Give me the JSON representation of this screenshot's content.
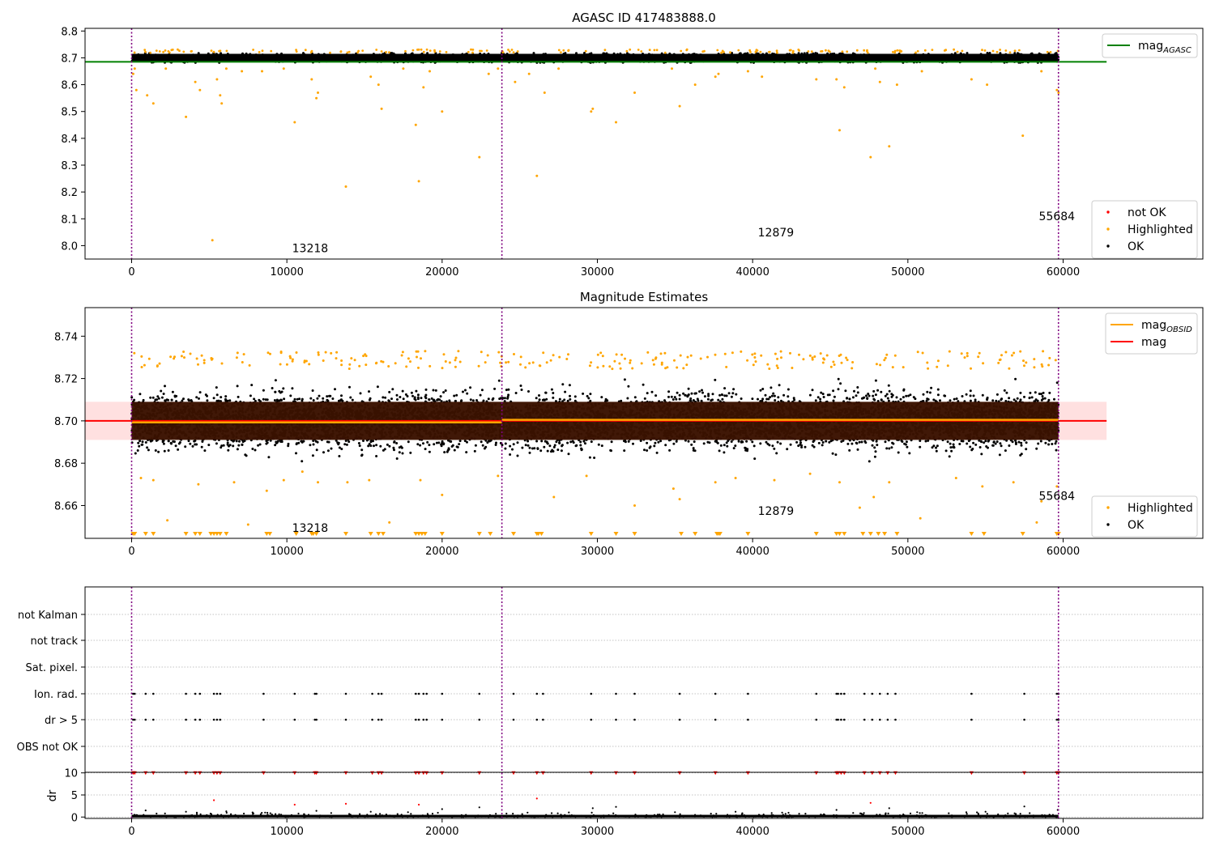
{
  "chart_data": [
    {
      "type": "scatter",
      "title": "AGASC ID 417483888.0",
      "xlim": [
        -3000,
        69000
      ],
      "ylim": [
        7.95,
        8.81
      ],
      "xticks": [
        0,
        10000,
        20000,
        30000,
        40000,
        50000,
        60000
      ],
      "xtick_labels": [
        "0",
        "10000",
        "20000",
        "30000",
        "40000",
        "50000",
        "60000"
      ],
      "yticks": [
        8.0,
        8.1,
        8.2,
        8.3,
        8.4,
        8.5,
        8.6,
        8.7,
        8.8
      ],
      "ytick_labels": [
        "8.0",
        "8.1",
        "8.2",
        "8.3",
        "8.4",
        "8.5",
        "8.6",
        "8.7",
        "8.8"
      ],
      "obsid_boundaries": [
        0,
        23850,
        59700
      ],
      "obsid_labels": [
        {
          "x": 11500,
          "y": 7.99,
          "text": "13218"
        },
        {
          "x": 41500,
          "y": 8.05,
          "text": "12879"
        },
        {
          "x": 59600,
          "y": 8.11,
          "text": "55684"
        }
      ],
      "mag_agasc": {
        "value": 8.685,
        "xrange": [
          -3000,
          62800
        ]
      },
      "ok_band": {
        "center": 8.7,
        "half_width": 0.018
      },
      "highlighted_points": [
        [
          100,
          8.64
        ],
        [
          200,
          8.66
        ],
        [
          300,
          8.58
        ],
        [
          1000,
          8.56
        ],
        [
          1400,
          8.53
        ],
        [
          2200,
          8.66
        ],
        [
          3500,
          8.48
        ],
        [
          4100,
          8.61
        ],
        [
          4400,
          8.58
        ],
        [
          5200,
          8.02
        ],
        [
          5500,
          8.62
        ],
        [
          5700,
          8.56
        ],
        [
          5800,
          8.53
        ],
        [
          6100,
          8.66
        ],
        [
          7100,
          8.65
        ],
        [
          8400,
          8.65
        ],
        [
          9800,
          8.66
        ],
        [
          10500,
          8.46
        ],
        [
          11600,
          8.62
        ],
        [
          11900,
          8.55
        ],
        [
          12000,
          8.57
        ],
        [
          13800,
          8.22
        ],
        [
          15400,
          8.63
        ],
        [
          15900,
          8.6
        ],
        [
          16100,
          8.51
        ],
        [
          17500,
          8.66
        ],
        [
          18300,
          8.45
        ],
        [
          18500,
          8.24
        ],
        [
          18800,
          8.59
        ],
        [
          19200,
          8.65
        ],
        [
          20000,
          8.5
        ],
        [
          22400,
          8.33
        ],
        [
          23000,
          8.64
        ],
        [
          23600,
          8.66
        ],
        [
          24700,
          8.61
        ],
        [
          25600,
          8.64
        ],
        [
          26100,
          8.26
        ],
        [
          26600,
          8.57
        ],
        [
          27500,
          8.66
        ],
        [
          29600,
          8.5
        ],
        [
          29700,
          8.51
        ],
        [
          31200,
          8.46
        ],
        [
          32400,
          8.57
        ],
        [
          34800,
          8.66
        ],
        [
          35300,
          8.52
        ],
        [
          36300,
          8.6
        ],
        [
          37600,
          8.63
        ],
        [
          37800,
          8.64
        ],
        [
          39700,
          8.65
        ],
        [
          40600,
          8.63
        ],
        [
          44100,
          8.62
        ],
        [
          45400,
          8.62
        ],
        [
          45600,
          8.43
        ],
        [
          45900,
          8.59
        ],
        [
          47600,
          8.33
        ],
        [
          47900,
          8.66
        ],
        [
          48200,
          8.61
        ],
        [
          48800,
          8.37
        ],
        [
          49300,
          8.6
        ],
        [
          50900,
          8.65
        ],
        [
          54100,
          8.62
        ],
        [
          55100,
          8.6
        ],
        [
          57400,
          8.41
        ],
        [
          58600,
          8.65
        ],
        [
          59600,
          8.58
        ],
        [
          59700,
          8.57
        ]
      ],
      "not_ok_points": [],
      "legends": [
        {
          "entries": [
            {
              "label": "mag",
              "sub": "AGASC",
              "kind": "line",
              "color": "#008000"
            }
          ],
          "placement": "upper-right"
        },
        {
          "entries": [
            {
              "label": "not OK",
              "kind": "marker",
              "color": "#ff0000"
            },
            {
              "label": "Highlighted",
              "kind": "marker",
              "color": "#ffa500"
            },
            {
              "label": "OK",
              "kind": "marker",
              "color": "#000000"
            }
          ],
          "placement": "lower-right"
        }
      ]
    },
    {
      "type": "scatter",
      "title": "Magnitude Estimates",
      "xlim": [
        -3000,
        69000
      ],
      "ylim": [
        8.6445,
        8.7535
      ],
      "xticks": [
        0,
        10000,
        20000,
        30000,
        40000,
        50000,
        60000
      ],
      "xtick_labels": [
        "0",
        "10000",
        "20000",
        "30000",
        "40000",
        "50000",
        "60000"
      ],
      "yticks": [
        8.66,
        8.68,
        8.7,
        8.72,
        8.74
      ],
      "ytick_labels": [
        "8.66",
        "8.68",
        "8.70",
        "8.72",
        "8.74"
      ],
      "obsid_boundaries": [
        0,
        23850,
        59700
      ],
      "obsid_labels": [
        {
          "x": 11500,
          "y": 8.6495,
          "text": "13218"
        },
        {
          "x": 41500,
          "y": 8.6575,
          "text": "12879"
        },
        {
          "x": 59600,
          "y": 8.6645,
          "text": "55684"
        }
      ],
      "mag_band": {
        "center": 8.7,
        "half_width": 0.009,
        "xrange": [
          -3000,
          62800
        ],
        "color": "#ff0000"
      },
      "mag_obsid_segments": [
        {
          "x0": 0,
          "x1": 23850,
          "y": 8.6993
        },
        {
          "x0": 23850,
          "x1": 59700,
          "y": 8.7005
        }
      ],
      "clipped_marker_y": 8.6468,
      "clipped_marker_x": [
        100,
        200,
        900,
        1400,
        3500,
        4100,
        4400,
        5100,
        5300,
        5500,
        5700,
        6100,
        8700,
        8900,
        10600,
        11600,
        11700,
        11900,
        13800,
        15400,
        15900,
        16200,
        18300,
        18500,
        18700,
        18900,
        20000,
        22400,
        23100,
        24600,
        26100,
        26200,
        26400,
        29600,
        31200,
        32400,
        35400,
        36300,
        37700,
        37800,
        37900,
        39700,
        44100,
        45400,
        45600,
        45900,
        47100,
        47600,
        48100,
        48500,
        49300,
        54100,
        54900,
        57400,
        59600,
        59700
      ],
      "highlighted_points_low": [
        [
          600,
          8.673
        ],
        [
          1400,
          8.672
        ],
        [
          2300,
          8.653
        ],
        [
          4300,
          8.67
        ],
        [
          6600,
          8.671
        ],
        [
          7500,
          8.651
        ],
        [
          8700,
          8.667
        ],
        [
          9800,
          8.672
        ],
        [
          11000,
          8.676
        ],
        [
          12000,
          8.671
        ],
        [
          13900,
          8.671
        ],
        [
          15300,
          8.672
        ],
        [
          16600,
          8.652
        ],
        [
          18600,
          8.672
        ],
        [
          20000,
          8.665
        ],
        [
          23600,
          8.674
        ],
        [
          27200,
          8.664
        ],
        [
          29300,
          8.674
        ],
        [
          32400,
          8.66
        ],
        [
          34900,
          8.668
        ],
        [
          35300,
          8.663
        ],
        [
          37600,
          8.671
        ],
        [
          38900,
          8.673
        ],
        [
          41400,
          8.672
        ],
        [
          43700,
          8.675
        ],
        [
          45600,
          8.671
        ],
        [
          46900,
          8.659
        ],
        [
          47800,
          8.664
        ],
        [
          48800,
          8.671
        ],
        [
          50800,
          8.654
        ],
        [
          53100,
          8.673
        ],
        [
          54800,
          8.669
        ],
        [
          56800,
          8.671
        ],
        [
          58300,
          8.652
        ],
        [
          58600,
          8.662
        ],
        [
          59600,
          8.669
        ]
      ],
      "legends": [
        {
          "entries": [
            {
              "label": "mag",
              "sub": "OBSID",
              "kind": "line",
              "color": "#ffa500"
            },
            {
              "label": "mag",
              "kind": "line",
              "color": "#ff0000"
            }
          ],
          "placement": "upper-right"
        },
        {
          "entries": [
            {
              "label": "Highlighted",
              "kind": "marker",
              "color": "#ffa500"
            },
            {
              "label": "OK",
              "kind": "marker",
              "color": "#000000"
            }
          ],
          "placement": "lower-right"
        }
      ]
    },
    {
      "type": "scatter",
      "title": "",
      "xlim": [
        -3000,
        69000
      ],
      "ylim": [
        -0.5,
        10.5
      ],
      "xticks": [
        0,
        10000,
        20000,
        30000,
        40000,
        50000,
        60000
      ],
      "xtick_labels": [
        "0",
        "10000",
        "20000",
        "30000",
        "40000",
        "50000",
        "60000"
      ],
      "obsid_boundaries": [
        0,
        23850,
        59700
      ],
      "flag_rows": [
        "not Kalman",
        "not track",
        "Sat. pixel.",
        "Ion. rad.",
        "dr > 5",
        "OBS not OK"
      ],
      "flag_events_x": [
        100,
        200,
        900,
        1400,
        3500,
        4100,
        4400,
        5300,
        5500,
        5700,
        8500,
        10500,
        11800,
        11900,
        13800,
        15500,
        15900,
        16100,
        18300,
        18500,
        18800,
        19000,
        20000,
        22400,
        24600,
        26100,
        26500,
        29600,
        31200,
        32400,
        35300,
        37600,
        39700,
        44100,
        45400,
        45500,
        45700,
        45900,
        47200,
        47700,
        48200,
        48700,
        49200,
        54100,
        57500,
        59600,
        59700
      ],
      "ylabel": "dr",
      "yticks": [
        0,
        5,
        10
      ],
      "ytick_labels": [
        "0",
        "5",
        "10"
      ],
      "dr_clipped_x": [
        100,
        200,
        900,
        1400,
        3500,
        4100,
        4400,
        5300,
        5500,
        5700,
        8500,
        10500,
        11800,
        11900,
        13800,
        15500,
        15900,
        16100,
        18300,
        18500,
        18800,
        19000,
        20000,
        22400,
        24600,
        26100,
        26500,
        29600,
        31200,
        32400,
        35300,
        37600,
        39700,
        44100,
        45400,
        45500,
        45700,
        45900,
        47200,
        47700,
        48200,
        48700,
        49200,
        54100,
        57500,
        59600,
        59700
      ],
      "dr_points_red": [
        [
          5300,
          3.8
        ],
        [
          10500,
          2.8
        ],
        [
          13800,
          3.0
        ],
        [
          18500,
          2.8
        ],
        [
          26100,
          4.2
        ],
        [
          47600,
          3.2
        ]
      ],
      "dr_points_black": [
        [
          900,
          1.5
        ],
        [
          3500,
          1.2
        ],
        [
          4200,
          1.0
        ],
        [
          6100,
          1.3
        ],
        [
          8600,
          1.0
        ],
        [
          11900,
          1.4
        ],
        [
          15400,
          1.2
        ],
        [
          17800,
          1.1
        ],
        [
          20000,
          1.8
        ],
        [
          22400,
          2.2
        ],
        [
          25500,
          1.0
        ],
        [
          29700,
          2.0
        ],
        [
          31200,
          2.3
        ],
        [
          35000,
          1.1
        ],
        [
          38900,
          1.2
        ],
        [
          41900,
          1.0
        ],
        [
          45400,
          1.6
        ],
        [
          48800,
          2.0
        ],
        [
          50600,
          1.1
        ],
        [
          55000,
          1.2
        ],
        [
          57500,
          2.4
        ],
        [
          59650,
          1.6
        ]
      ]
    }
  ]
}
